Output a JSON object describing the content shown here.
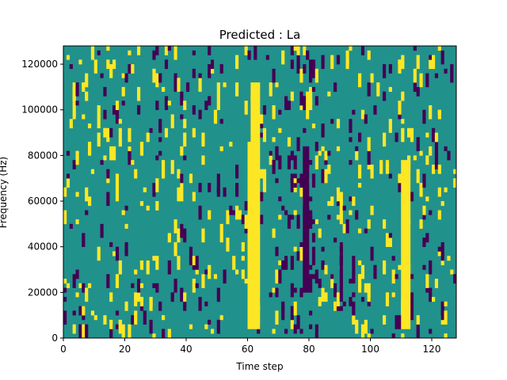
{
  "chart_data": {
    "type": "heatmap",
    "title": "Predicted : La",
    "xlabel": "Time step",
    "ylabel": "Frequency (Hz)",
    "xlim": [
      0,
      128
    ],
    "ylim": [
      0,
      128000
    ],
    "xticks": [
      0,
      20,
      40,
      60,
      80,
      100,
      120
    ],
    "yticks": [
      0,
      20000,
      40000,
      60000,
      80000,
      100000,
      120000
    ],
    "colormap": {
      "background": "#21918c",
      "high": "#fde725",
      "low": "#440154"
    },
    "rows": 64,
    "cols": 128,
    "yellow_vertical_bands": [
      {
        "x_start": 60,
        "x_end": 64,
        "y_start": 4000,
        "y_end": 86000
      },
      {
        "x_start": 61,
        "x_end": 64,
        "y_start": 86000,
        "y_end": 112000
      },
      {
        "x_start": 110,
        "x_end": 113,
        "y_start": 4000,
        "y_end": 78000
      }
    ],
    "dark_vertical_bands": [
      {
        "x_start": 78,
        "x_end": 80,
        "y_start": 20000,
        "y_end": 82000
      },
      {
        "x_start": 90,
        "x_end": 91,
        "y_start": 16000,
        "y_end": 42000
      }
    ]
  }
}
